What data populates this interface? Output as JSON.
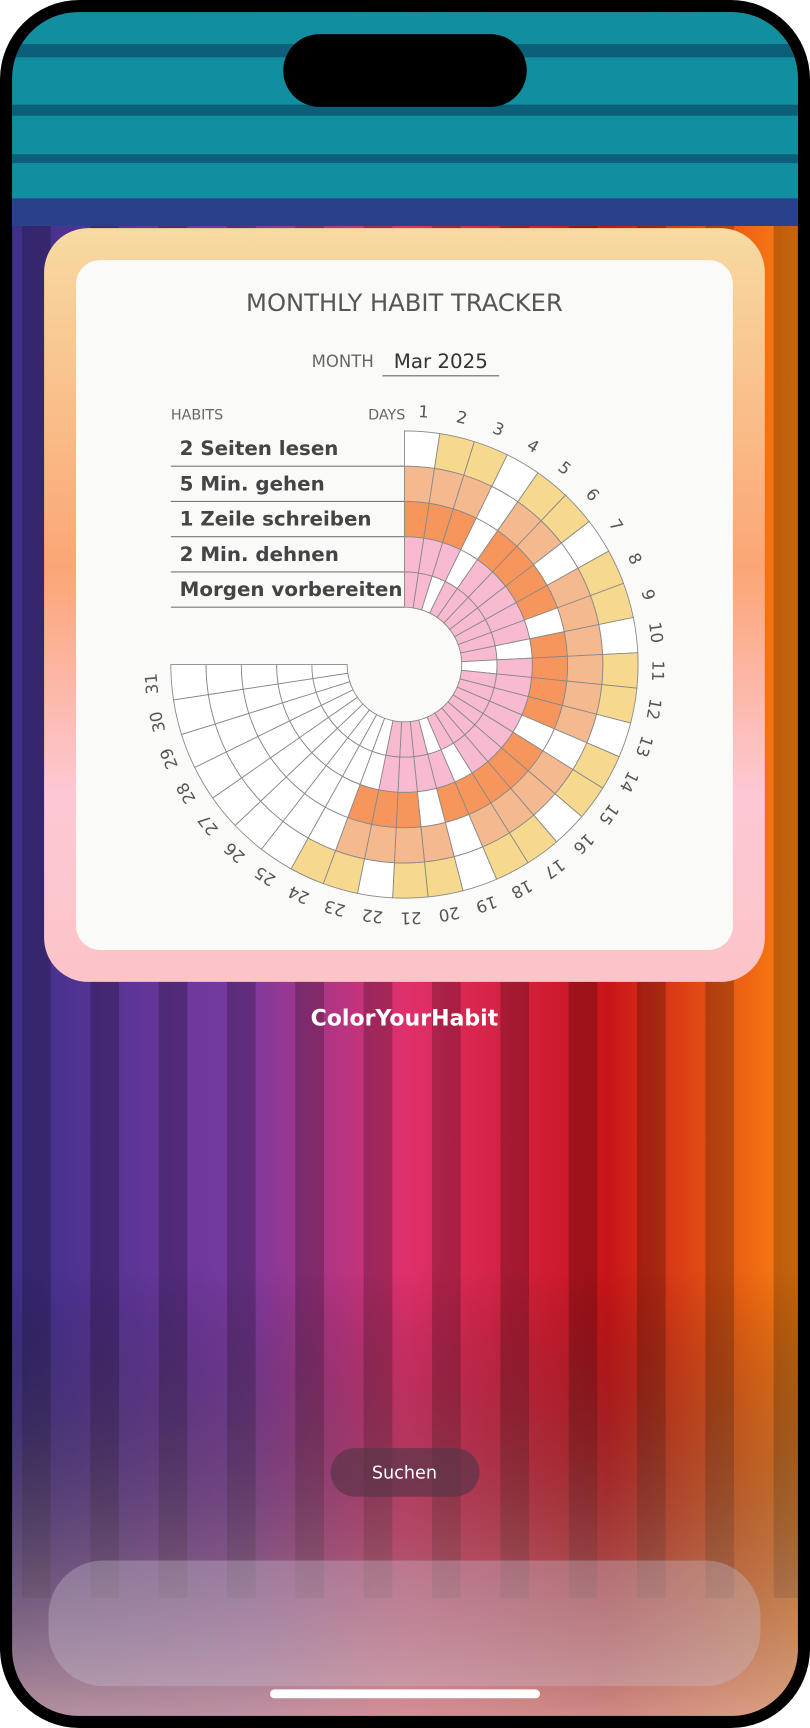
{
  "widget": {
    "title": "MONTHLY HABIT TRACKER",
    "month_label": "MONTH",
    "month": "Mar 2025",
    "habits_label": "HABITS",
    "days_label": "DAYS",
    "days": [
      1,
      2,
      3,
      4,
      5,
      6,
      7,
      8,
      9,
      10,
      11,
      12,
      13,
      14,
      15,
      16,
      17,
      18,
      19,
      20,
      21,
      22,
      23,
      24,
      25,
      26,
      27,
      28,
      29,
      30,
      31
    ],
    "habits": [
      {
        "name": "2 Seiten lesen",
        "color": "#f6d88e",
        "done": [
          0,
          1,
          1,
          0,
          1,
          1,
          0,
          1,
          1,
          0,
          1,
          1,
          0,
          1,
          1,
          0,
          1,
          1,
          0,
          1,
          1,
          0,
          1,
          1,
          0,
          0,
          0,
          0,
          0,
          0,
          0
        ]
      },
      {
        "name": "5 Min. gehen",
        "color": "#f5b990",
        "done": [
          1,
          1,
          1,
          0,
          1,
          1,
          0,
          1,
          1,
          1,
          1,
          1,
          1,
          0,
          1,
          1,
          1,
          1,
          0,
          1,
          1,
          1,
          1,
          0,
          0,
          0,
          0,
          0,
          0,
          0,
          0
        ]
      },
      {
        "name": "1 Zeile schreiben",
        "color": "#f7965c",
        "done": [
          1,
          1,
          1,
          0,
          1,
          1,
          1,
          1,
          0,
          1,
          1,
          1,
          1,
          0,
          1,
          1,
          1,
          1,
          1,
          0,
          1,
          1,
          1,
          0,
          0,
          0,
          0,
          0,
          0,
          0,
          0
        ]
      },
      {
        "name": "2 Min. dehnen",
        "color": "#f8bad0",
        "done": [
          1,
          1,
          1,
          0,
          1,
          1,
          1,
          1,
          1,
          0,
          1,
          1,
          1,
          1,
          1,
          1,
          1,
          0,
          1,
          1,
          1,
          1,
          0,
          0,
          0,
          0,
          0,
          0,
          0,
          0,
          0
        ]
      },
      {
        "name": "Morgen vorbereiten",
        "color": "#f8bad0",
        "done": [
          1,
          1,
          0,
          1,
          1,
          1,
          1,
          1,
          1,
          1,
          0,
          1,
          1,
          1,
          1,
          1,
          1,
          1,
          0,
          1,
          1,
          1,
          0,
          0,
          0,
          0,
          0,
          0,
          0,
          0,
          0
        ]
      }
    ]
  },
  "app_name": "ColorYourHabit",
  "search_button": "Suchen"
}
